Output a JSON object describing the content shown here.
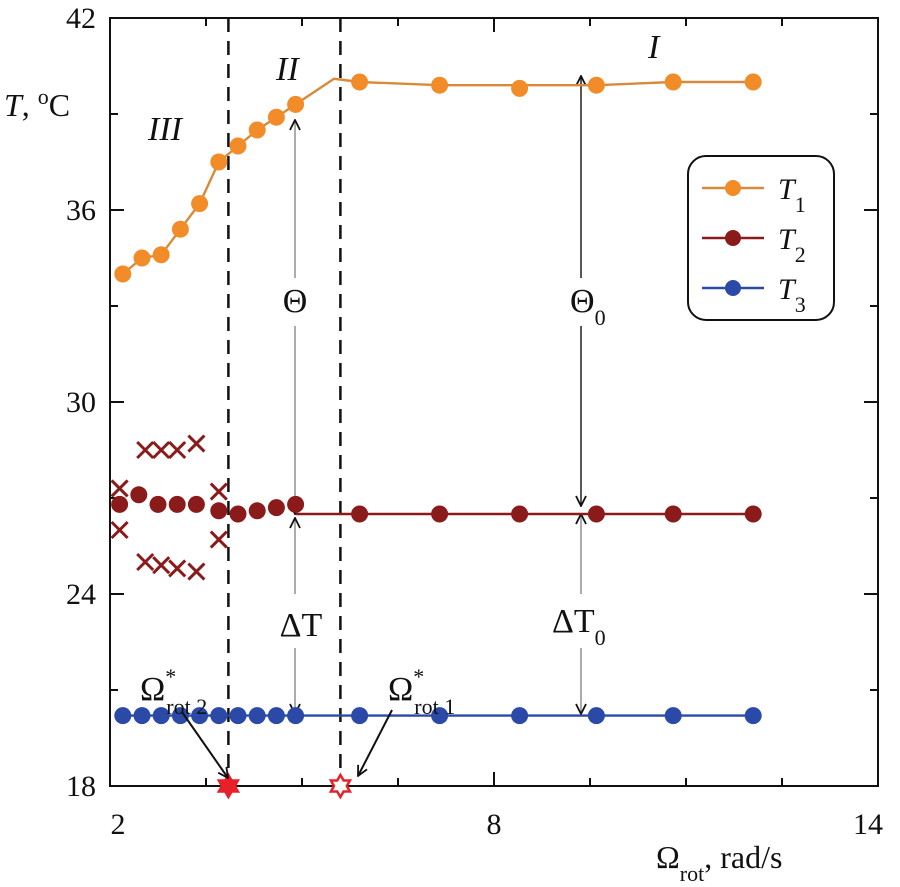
{
  "chart_data": {
    "type": "line",
    "title": "",
    "xlabel": {
      "main": "Ω",
      "sub": "rot",
      "rest": ", rad/s"
    },
    "ylabel": {
      "main": "T",
      "rest": ", ",
      "deg": "o",
      "unit": "C"
    },
    "xlim": [
      2,
      14
    ],
    "ylim": [
      18,
      42
    ],
    "x_ticks": [
      2,
      8,
      14
    ],
    "x_tick_labels": [
      "2",
      "8",
      "14"
    ],
    "y_ticks": [
      18,
      24,
      30,
      36,
      42
    ],
    "y_tick_labels": [
      "18",
      "24",
      "30",
      "36",
      "42"
    ],
    "minor_y_step": 3,
    "minor_x_step": 1.5,
    "series": [
      {
        "name": "T",
        "sub": "1",
        "color": "#f28c28",
        "line_color": "#d88a3a",
        "x": [
          2.2,
          2.5,
          2.8,
          3.1,
          3.4,
          3.7,
          4.0,
          4.3,
          4.6,
          4.9,
          5.9,
          7.15,
          8.4,
          9.6,
          10.8,
          12.05
        ],
        "values": [
          34.0,
          34.5,
          34.6,
          35.4,
          36.2,
          37.5,
          38.0,
          38.5,
          38.9,
          39.3,
          40.0,
          39.9,
          39.8,
          39.9,
          40.0,
          40.0
        ],
        "line_x": [
          2.2,
          2.5,
          2.8,
          3.1,
          3.4,
          3.7,
          4.0,
          4.3,
          4.6,
          4.9,
          5.5,
          5.9,
          7.15,
          8.4,
          9.6,
          10.8,
          12.05
        ],
        "line_y": [
          34.0,
          34.5,
          34.6,
          35.4,
          36.2,
          37.5,
          38.0,
          38.5,
          38.9,
          39.3,
          40.1,
          40.0,
          39.9,
          39.9,
          39.9,
          40.0,
          40.0
        ]
      },
      {
        "name": "T",
        "sub": "2",
        "color": "#8b1a1a",
        "line_color": "#8b1a1a",
        "x": [
          2.15,
          2.45,
          2.75,
          3.05,
          3.35,
          3.7,
          4.0,
          4.3,
          4.6,
          4.9,
          5.9,
          7.15,
          8.4,
          9.6,
          10.8,
          12.05
        ],
        "values": [
          26.8,
          27.1,
          26.8,
          26.8,
          26.8,
          26.6,
          26.5,
          26.6,
          26.7,
          26.8,
          26.5,
          26.5,
          26.5,
          26.5,
          26.5,
          26.5
        ],
        "line_x": [
          4.9,
          12.05
        ],
        "line_y": [
          26.5,
          26.5
        ]
      },
      {
        "name": "T",
        "sub": "3",
        "color": "#2b4aa8",
        "line_color": "#2b4aa8",
        "x": [
          2.2,
          2.5,
          2.8,
          3.1,
          3.4,
          3.7,
          4.0,
          4.3,
          4.6,
          4.9,
          5.9,
          7.15,
          8.4,
          9.6,
          10.8,
          12.05
        ],
        "values": [
          20.2,
          20.2,
          20.2,
          20.2,
          20.2,
          20.2,
          20.2,
          20.2,
          20.2,
          20.2,
          20.2,
          20.2,
          20.2,
          20.2,
          20.2,
          20.2
        ],
        "line_x": [
          2.2,
          12.05
        ],
        "line_y": [
          20.2,
          20.2
        ]
      }
    ],
    "crosses": {
      "color": "#8b1a1a",
      "x": [
        2.15,
        2.15,
        2.55,
        2.8,
        3.05,
        3.35,
        2.55,
        2.8,
        3.05,
        3.35,
        3.7,
        3.7
      ],
      "values": [
        27.3,
        26.0,
        28.5,
        28.5,
        28.5,
        28.7,
        25.0,
        24.9,
        24.8,
        24.7,
        27.2,
        25.7
      ]
    },
    "vlines": [
      3.85,
      5.6
    ],
    "critical_points": [
      {
        "x": 3.85,
        "y": 18,
        "fill": "#e8202a",
        "label": "Ω",
        "sup": "*",
        "sub": "rot 2"
      },
      {
        "x": 5.6,
        "y": 18,
        "fill": "#ffffff",
        "label": "Ω",
        "sup": "*",
        "sub": "rot 1"
      }
    ],
    "regions": [
      "III",
      "II",
      "I"
    ],
    "annotations": {
      "theta": "Θ",
      "theta0": {
        "main": "Θ",
        "sub": "0"
      },
      "dT": "ΔT",
      "dT0": {
        "main": "ΔT",
        "sub": "0"
      }
    },
    "legend": {
      "position": "right"
    }
  },
  "colors": {
    "t1": "#f28c28",
    "t2": "#8b1a1a",
    "t3": "#2b4aa8",
    "star2": "#e8202a"
  }
}
